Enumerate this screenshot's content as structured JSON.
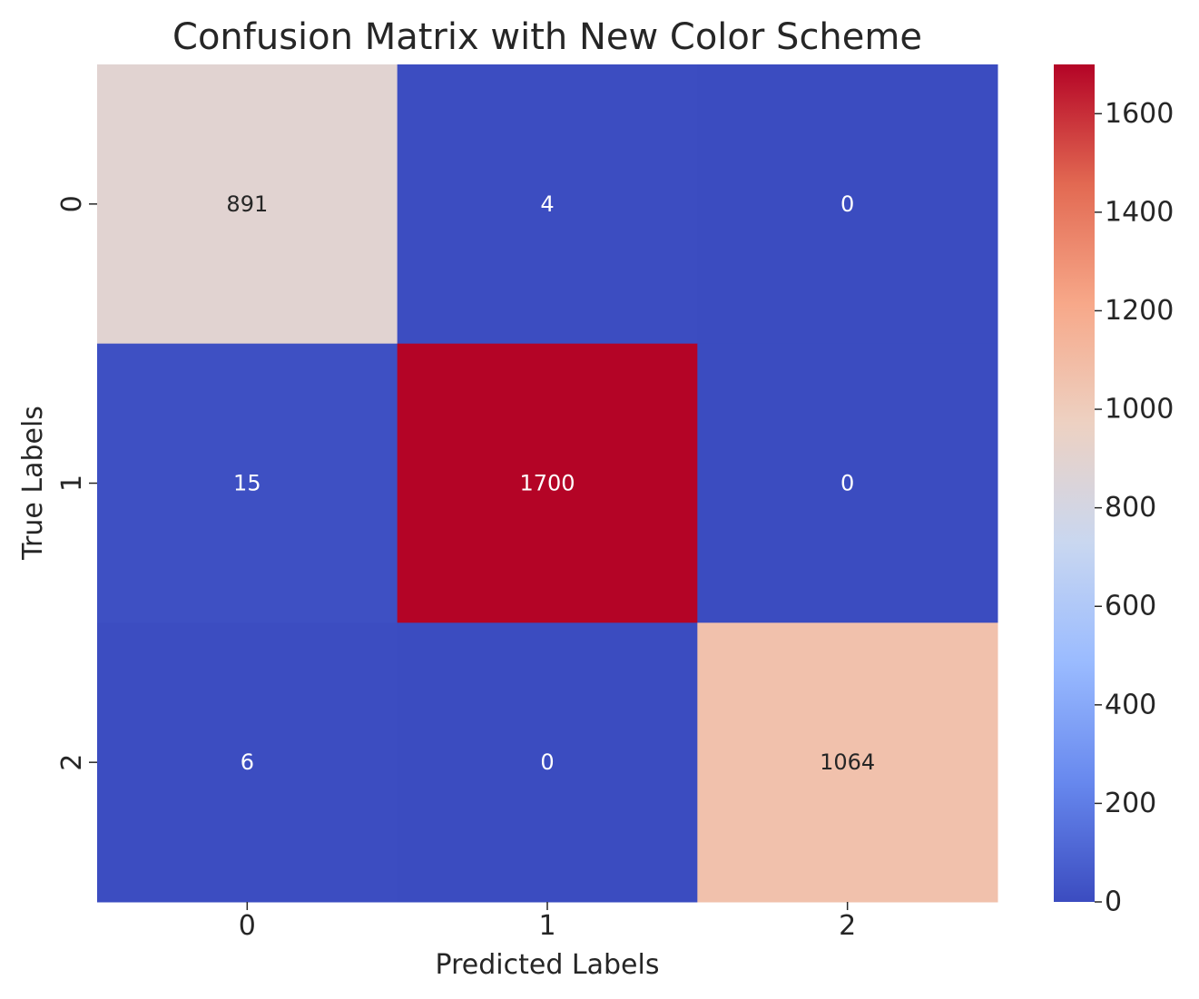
{
  "chart_data": {
    "type": "heatmap",
    "title": "Confusion Matrix with New Color Scheme",
    "xlabel": "Predicted Labels",
    "ylabel": "True Labels",
    "x_categories": [
      "0",
      "1",
      "2"
    ],
    "y_categories": [
      "0",
      "1",
      "2"
    ],
    "values": [
      [
        891,
        4,
        0
      ],
      [
        15,
        1700,
        0
      ],
      [
        6,
        0,
        1064
      ]
    ],
    "colormap": "coolwarm",
    "colormap_stops": [
      "#3b4cc0",
      "#6788ee",
      "#9abbff",
      "#c9d7f0",
      "#edd1c2",
      "#f7a889",
      "#e26952",
      "#b40426"
    ],
    "color_range": [
      0,
      1700
    ],
    "colorbar_ticks": [
      0,
      200,
      400,
      600,
      800,
      1000,
      1200,
      1400,
      1600
    ],
    "grid": false,
    "annotations": true
  }
}
